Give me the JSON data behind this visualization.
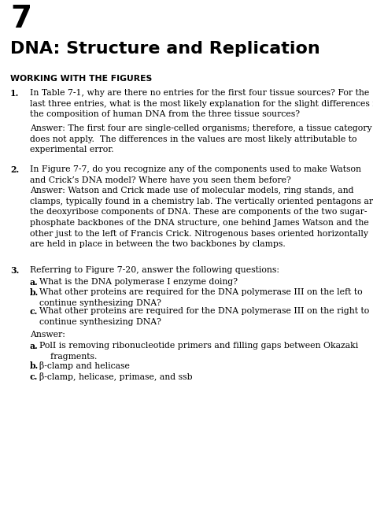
{
  "bg_color": "#ffffff",
  "chapter_number": "7",
  "title": "DNA: Structure and Replication",
  "section_heading": "WORKING WITH THE FIGURES"
}
